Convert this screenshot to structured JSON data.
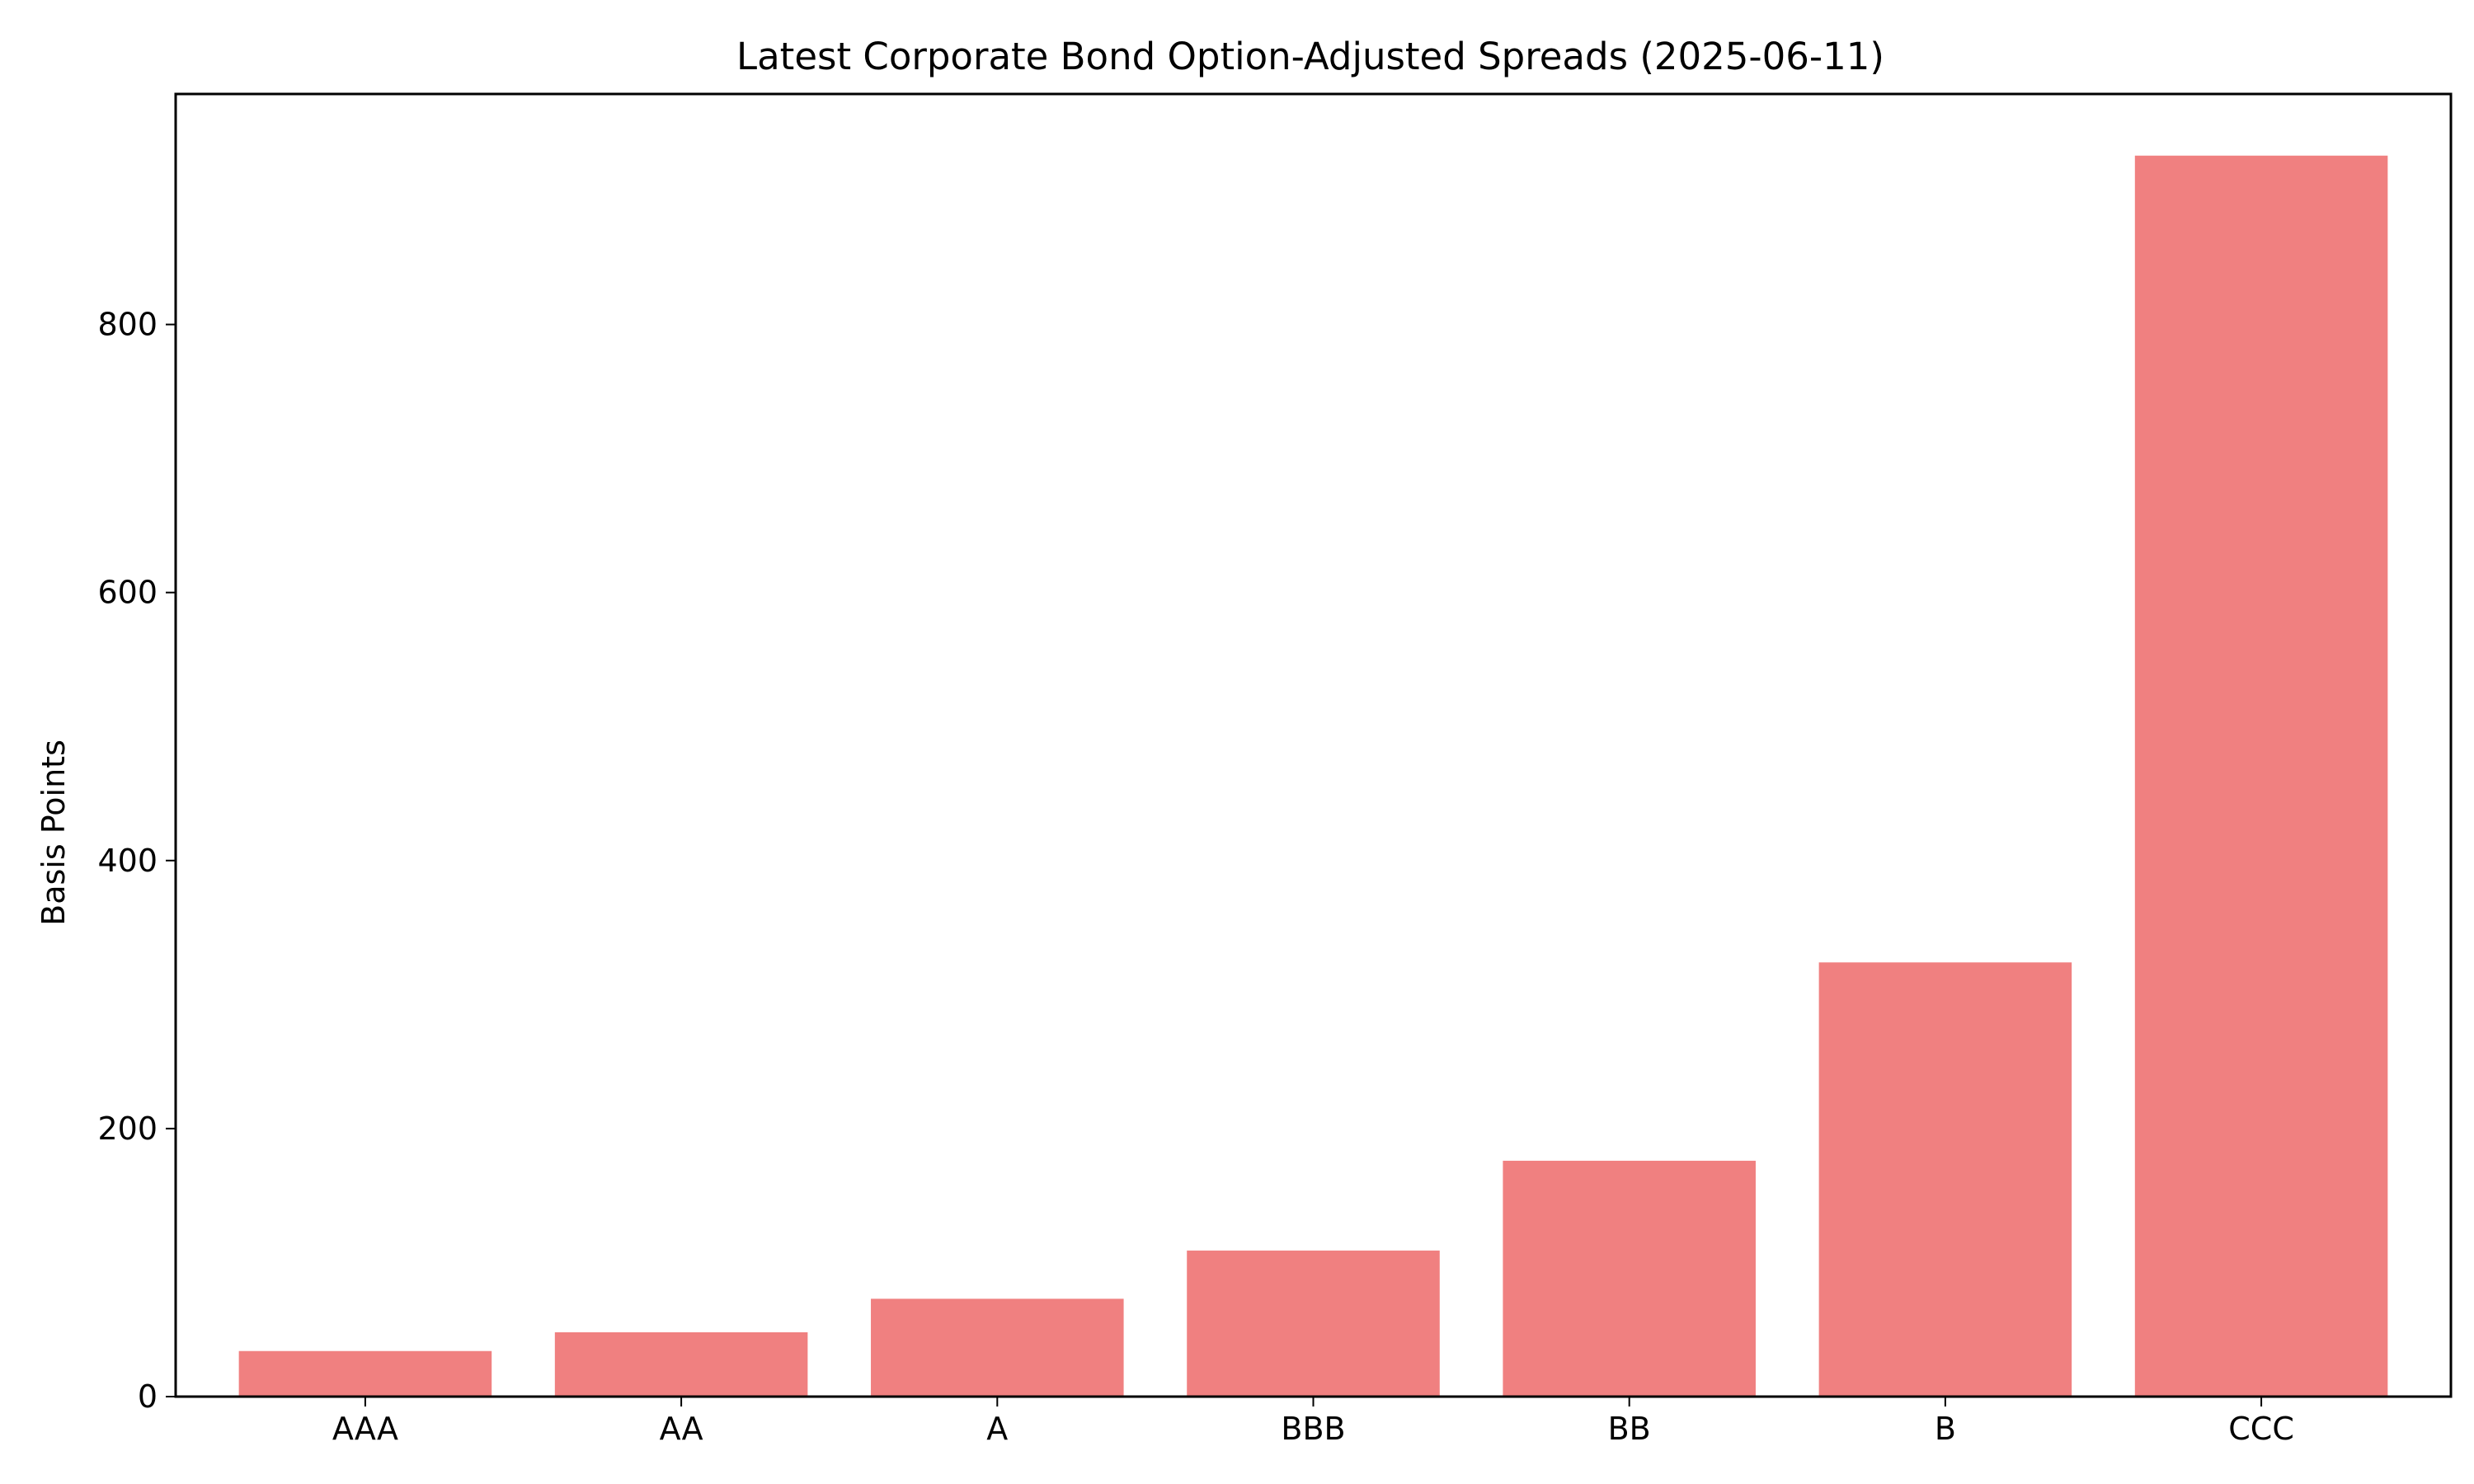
{
  "chart_data": {
    "type": "bar",
    "title": "Latest Corporate Bond Option-Adjusted Spreads (2025-06-11)",
    "xlabel": "",
    "ylabel": "Basis Points",
    "categories": [
      "AAA",
      "AA",
      "A",
      "BBB",
      "BB",
      "B",
      "CCC"
    ],
    "values": [
      34,
      48,
      73,
      109,
      176,
      324,
      926
    ],
    "ylim": [
      0,
      972
    ],
    "yticks": [
      0,
      200,
      400,
      600,
      800
    ],
    "grid": false,
    "bar_color": "#f08080"
  }
}
